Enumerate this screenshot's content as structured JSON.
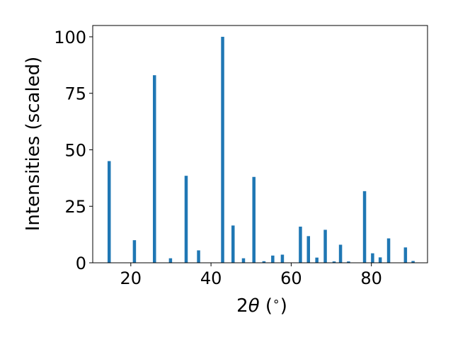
{
  "chart_data": {
    "type": "bar",
    "title": "",
    "xlabel_prefix": "2",
    "xlabel_theta": "θ",
    "xlabel_unit": " (",
    "xlabel_degree": "∘",
    "xlabel_close": ")",
    "ylabel": "Intensities (scaled)",
    "xlim": [
      10.5,
      94
    ],
    "ylim": [
      0,
      105
    ],
    "xticks": [
      20,
      40,
      60,
      80
    ],
    "yticks": [
      0,
      25,
      50,
      75,
      100
    ],
    "grid": false,
    "bar_color": "#1f77b4",
    "peaks": [
      {
        "x": 14.6,
        "y": 45
      },
      {
        "x": 20.9,
        "y": 10
      },
      {
        "x": 25.9,
        "y": 83
      },
      {
        "x": 29.9,
        "y": 2
      },
      {
        "x": 33.8,
        "y": 38.5
      },
      {
        "x": 36.9,
        "y": 5.5
      },
      {
        "x": 42.9,
        "y": 100
      },
      {
        "x": 45.5,
        "y": 16.5
      },
      {
        "x": 48.1,
        "y": 2
      },
      {
        "x": 50.7,
        "y": 38
      },
      {
        "x": 53.2,
        "y": 0.7
      },
      {
        "x": 55.4,
        "y": 3.2
      },
      {
        "x": 57.8,
        "y": 3.6
      },
      {
        "x": 62.3,
        "y": 16
      },
      {
        "x": 64.3,
        "y": 11.8
      },
      {
        "x": 66.4,
        "y": 2.3
      },
      {
        "x": 68.5,
        "y": 14.6
      },
      {
        "x": 70.7,
        "y": 0.6
      },
      {
        "x": 72.3,
        "y": 8
      },
      {
        "x": 74.3,
        "y": 0.6
      },
      {
        "x": 78.3,
        "y": 31.7
      },
      {
        "x": 80.3,
        "y": 4.2
      },
      {
        "x": 82.2,
        "y": 2.4
      },
      {
        "x": 84.3,
        "y": 10.8
      },
      {
        "x": 88.5,
        "y": 6.8
      },
      {
        "x": 90.4,
        "y": 0.8
      }
    ]
  }
}
